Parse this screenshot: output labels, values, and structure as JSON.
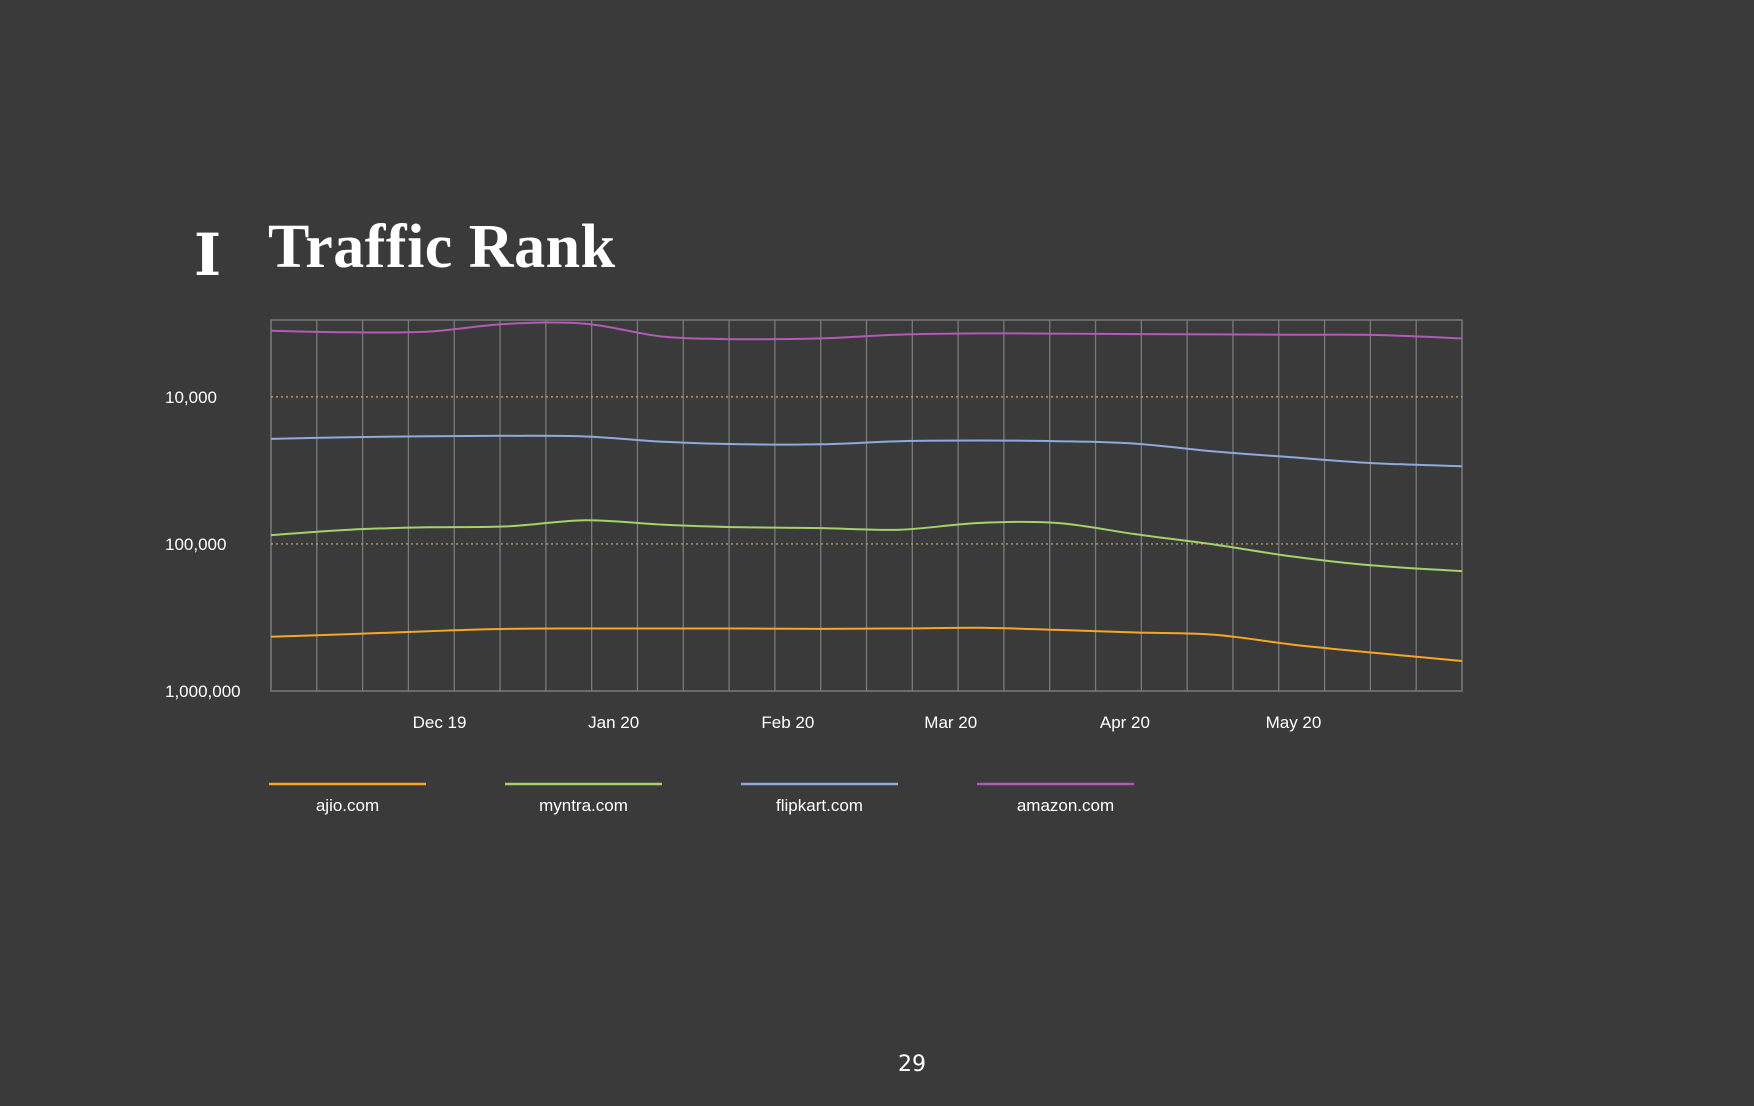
{
  "slide": {
    "logo_text": "I",
    "title": "Traffic Rank",
    "page_number": "29"
  },
  "colors": {
    "background": "#3a3a3a",
    "grid": "#7a7a7a",
    "reference_line": "#d9a36a",
    "text": "#ffffff"
  },
  "chart_data": {
    "type": "line",
    "title": "",
    "xlabel": "",
    "ylabel": "",
    "y_scale": "log",
    "y_reversed": true,
    "ylim": [
      3000,
      1000000
    ],
    "y_ticks": [
      {
        "value": 10000,
        "label": "10,000"
      },
      {
        "value": 100000,
        "label": "100,000"
      },
      {
        "value": 1000000,
        "label": "1,000,000"
      }
    ],
    "x_ticks": [
      "Dec 19",
      "Jan 20",
      "Feb 20",
      "Mar 20",
      "Apr 20",
      "May 20"
    ],
    "x_range": [
      "2019-11-01",
      "2020-05-31"
    ],
    "grid": true,
    "legend_position": "bottom",
    "x": [
      "2019-11-01",
      "2019-11-15",
      "2019-11-29",
      "2019-12-13",
      "2019-12-27",
      "2020-01-10",
      "2020-01-24",
      "2020-02-07",
      "2020-02-21",
      "2020-03-06",
      "2020-03-20",
      "2020-04-03",
      "2020-04-17",
      "2020-05-01",
      "2020-05-15",
      "2020-05-31"
    ],
    "series": [
      {
        "name": "ajio.com",
        "color": "#f5a623",
        "values": [
          428000,
          410000,
          392000,
          378000,
          376000,
          376000,
          376000,
          378000,
          376000,
          372000,
          384000,
          400000,
          415000,
          484000,
          548000,
          625000
        ]
      },
      {
        "name": "myntra.com",
        "color": "#a3d16a",
        "values": [
          87000,
          80000,
          77000,
          76000,
          69000,
          74000,
          77000,
          78000,
          80000,
          72000,
          72000,
          86000,
          101000,
          122000,
          140000,
          153000
        ]
      },
      {
        "name": "flipkart.com",
        "color": "#8fa9dc",
        "values": [
          19300,
          18800,
          18500,
          18400,
          18600,
          20200,
          21000,
          21000,
          20000,
          19800,
          20000,
          20800,
          23500,
          25800,
          28200,
          29600
        ]
      },
      {
        "name": "amazon.com",
        "color": "#b15ab6",
        "values": [
          3550,
          3640,
          3600,
          3190,
          3180,
          3900,
          4050,
          4000,
          3770,
          3700,
          3710,
          3740,
          3760,
          3780,
          3790,
          4000
        ]
      }
    ]
  }
}
